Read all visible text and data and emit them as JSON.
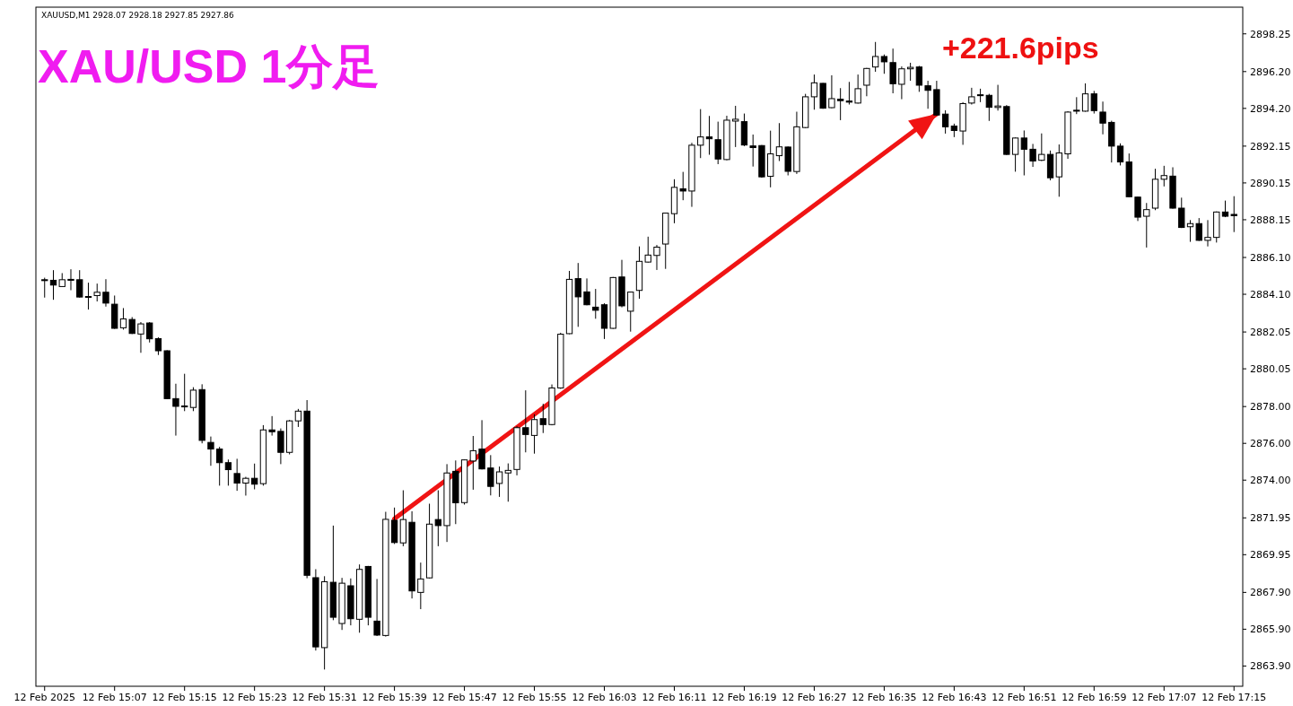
{
  "chart_data": {
    "type": "candlestick",
    "title": "XAU/USD 1分足",
    "subtitle": "XAUUSD,M1  2928.07 2928.18 2927.85 2927.86",
    "color": "#000000",
    "xlim": [
      "2025-02-12T14:58",
      "2025-02-12T17:16"
    ],
    "ylim": [
      2862.8,
      2899.7
    ],
    "yticks": [
      2898.25,
      {
        "value": 2896.2,
        "label": "2896.20"
      },
      {
        "value": 2894.2,
        "label": "2894.20"
      },
      2892.15,
      2890.15,
      2888.15,
      {
        "value": 2886.1,
        "label": "2886.10"
      },
      {
        "value": 2884.1,
        "label": "2884.10"
      },
      2882.05,
      2880.05,
      {
        "value": 2878,
        "label": "2878.00"
      },
      {
        "value": 2876,
        "label": "2876.00"
      },
      {
        "value": 2874,
        "label": "2874.00"
      },
      2871.95,
      2869.95,
      {
        "value": 2867.9,
        "label": "2867.90"
      },
      {
        "value": 2865.9,
        "label": "2865.90"
      },
      {
        "value": 2863.9,
        "label": "2863.90"
      }
    ],
    "xticks": [
      {
        "value": "2025-02-12T14:59",
        "label": "12 Feb 2025"
      },
      {
        "value": "2025-02-12T15:07",
        "label": "12 Feb 15:07"
      },
      {
        "value": "2025-02-12T15:15",
        "label": "12 Feb 15:15"
      },
      {
        "value": "2025-02-12T15:23",
        "label": "12 Feb 15:23"
      },
      {
        "value": "2025-02-12T15:31",
        "label": "12 Feb 15:31"
      },
      {
        "value": "2025-02-12T15:39",
        "label": "12 Feb 15:39"
      },
      {
        "value": "2025-02-12T15:47",
        "label": "12 Feb 15:47"
      },
      {
        "value": "2025-02-12T15:55",
        "label": "12 Feb 15:55"
      },
      {
        "value": "2025-02-12T16:03",
        "label": "12 Feb 16:03"
      },
      {
        "value": "2025-02-12T16:11",
        "label": "12 Feb 16:11"
      },
      {
        "value": "2025-02-12T16:19",
        "label": "12 Feb 16:19"
      },
      {
        "value": "2025-02-12T16:27",
        "label": "12 Feb 16:27"
      },
      {
        "value": "2025-02-12T16:35",
        "label": "12 Feb 16:35"
      },
      {
        "value": "2025-02-12T16:43",
        "label": "12 Feb 16:43"
      },
      {
        "value": "2025-02-12T16:51",
        "label": "12 Feb 16:51"
      },
      {
        "value": "2025-02-12T16:59",
        "label": "12 Feb 16:59"
      },
      {
        "value": "2025-02-12T17:07",
        "label": "12 Feb 17:07"
      },
      {
        "value": "2025-02-12T17:15",
        "label": "12 Feb 17:15"
      }
    ],
    "x": [
      "2025-02-12T14:59",
      "2025-02-12T15:00",
      "2025-02-12T15:01",
      "2025-02-12T15:02",
      "2025-02-12T15:03",
      "2025-02-12T15:04",
      "2025-02-12T15:05",
      "2025-02-12T15:06",
      "2025-02-12T15:07",
      "2025-02-12T15:08",
      "2025-02-12T15:09",
      "2025-02-12T15:10",
      "2025-02-12T15:11",
      "2025-02-12T15:12",
      "2025-02-12T15:13",
      "2025-02-12T15:14",
      "2025-02-12T15:15",
      "2025-02-12T15:16",
      "2025-02-12T15:17",
      "2025-02-12T15:18",
      "2025-02-12T15:19",
      "2025-02-12T15:20",
      "2025-02-12T15:21",
      "2025-02-12T15:22",
      "2025-02-12T15:23",
      "2025-02-12T15:24",
      "2025-02-12T15:25",
      "2025-02-12T15:26",
      "2025-02-12T15:27",
      "2025-02-12T15:28",
      "2025-02-12T15:29",
      "2025-02-12T15:30",
      "2025-02-12T15:31",
      "2025-02-12T15:32",
      "2025-02-12T15:33",
      "2025-02-12T15:34",
      "2025-02-12T15:35",
      "2025-02-12T15:36",
      "2025-02-12T15:37",
      "2025-02-12T15:38",
      "2025-02-12T15:39",
      "2025-02-12T15:40",
      "2025-02-12T15:41",
      "2025-02-12T15:42",
      "2025-02-12T15:43",
      "2025-02-12T15:44",
      "2025-02-12T15:45",
      "2025-02-12T15:46",
      "2025-02-12T15:47",
      "2025-02-12T15:48",
      "2025-02-12T15:49",
      "2025-02-12T15:50",
      "2025-02-12T15:51",
      "2025-02-12T15:52",
      "2025-02-12T15:53",
      "2025-02-12T15:54",
      "2025-02-12T15:55",
      "2025-02-12T15:56",
      "2025-02-12T15:57",
      "2025-02-12T15:58",
      "2025-02-12T15:59",
      "2025-02-12T16:00",
      "2025-02-12T16:01",
      "2025-02-12T16:02",
      "2025-02-12T16:03",
      "2025-02-12T16:04",
      "2025-02-12T16:05",
      "2025-02-12T16:06",
      "2025-02-12T16:07",
      "2025-02-12T16:08",
      "2025-02-12T16:09",
      "2025-02-12T16:10",
      "2025-02-12T16:11",
      "2025-02-12T16:12",
      "2025-02-12T16:13",
      "2025-02-12T16:14",
      "2025-02-12T16:15",
      "2025-02-12T16:16",
      "2025-02-12T16:17",
      "2025-02-12T16:18",
      "2025-02-12T16:19",
      "2025-02-12T16:20",
      "2025-02-12T16:21",
      "2025-02-12T16:22",
      "2025-02-12T16:23",
      "2025-02-12T16:24",
      "2025-02-12T16:25",
      "2025-02-12T16:26",
      "2025-02-12T16:27",
      "2025-02-12T16:28",
      "2025-02-12T16:29",
      "2025-02-12T16:30",
      "2025-02-12T16:31",
      "2025-02-12T16:32",
      "2025-02-12T16:33",
      "2025-02-12T16:34",
      "2025-02-12T16:35",
      "2025-02-12T16:36",
      "2025-02-12T16:37",
      "2025-02-12T16:38",
      "2025-02-12T16:39",
      "2025-02-12T16:40",
      "2025-02-12T16:41",
      "2025-02-12T16:42",
      "2025-02-12T16:43",
      "2025-02-12T16:44",
      "2025-02-12T16:45",
      "2025-02-12T16:46",
      "2025-02-12T16:47",
      "2025-02-12T16:48",
      "2025-02-12T16:49",
      "2025-02-12T16:50",
      "2025-02-12T16:51",
      "2025-02-12T16:52",
      "2025-02-12T16:53",
      "2025-02-12T16:54",
      "2025-02-12T16:55",
      "2025-02-12T16:56",
      "2025-02-12T16:57",
      "2025-02-12T16:58",
      "2025-02-12T16:59",
      "2025-02-12T17:00",
      "2025-02-12T17:01",
      "2025-02-12T17:02",
      "2025-02-12T17:03",
      "2025-02-12T17:04",
      "2025-02-12T17:05",
      "2025-02-12T17:06",
      "2025-02-12T17:07",
      "2025-02-12T17:08",
      "2025-02-12T17:09",
      "2025-02-12T17:10",
      "2025-02-12T17:11",
      "2025-02-12T17:12",
      "2025-02-12T17:13",
      "2025-02-12T17:14",
      "2025-02-12T17:15"
    ],
    "ohlc": [
      [
        2884.89,
        2885.0,
        2883.92,
        2884.86
      ],
      [
        2884.86,
        2885.41,
        2883.8,
        2884.6
      ],
      [
        2884.52,
        2885.25,
        2884.5,
        2884.89
      ],
      [
        2884.91,
        2885.46,
        2884.32,
        2884.86
      ],
      [
        2884.89,
        2885.41,
        2883.92,
        2883.95
      ],
      [
        2883.98,
        2884.73,
        2883.27,
        2883.96
      ],
      [
        2884.03,
        2884.68,
        2883.71,
        2884.21
      ],
      [
        2884.21,
        2884.92,
        2883.43,
        2883.62
      ],
      [
        2883.56,
        2884.03,
        2882.22,
        2882.25
      ],
      [
        2882.28,
        2883.35,
        2882.18,
        2882.76
      ],
      [
        2882.73,
        2882.86,
        2881.94,
        2881.97
      ],
      [
        2881.94,
        2882.59,
        2880.92,
        2882.49
      ],
      [
        2882.54,
        2882.59,
        2881.48,
        2881.68
      ],
      [
        2881.69,
        2881.76,
        2880.8,
        2881.03
      ],
      [
        2881.03,
        2881.06,
        2878.4,
        2878.43
      ],
      [
        2878.43,
        2879.24,
        2876.42,
        2878.01
      ],
      [
        2878.03,
        2879.78,
        2877.75,
        2878.0
      ],
      [
        2877.95,
        2879.05,
        2877.75,
        2878.89
      ],
      [
        2878.92,
        2879.21,
        2876.0,
        2876.16
      ],
      [
        2876.05,
        2876.37,
        2874.78,
        2875.69
      ],
      [
        2875.69,
        2875.81,
        2873.7,
        2874.95
      ],
      [
        2874.95,
        2875.12,
        2873.7,
        2874.57
      ],
      [
        2874.36,
        2875.16,
        2873.42,
        2873.84
      ],
      [
        2873.84,
        2874.18,
        2873.16,
        2874.1
      ],
      [
        2874.1,
        2874.9,
        2873.5,
        2873.78
      ],
      [
        2873.81,
        2876.99,
        2873.7,
        2876.73
      ],
      [
        2876.73,
        2877.48,
        2876.42,
        2876.63
      ],
      [
        2876.65,
        2876.81,
        2874.87,
        2875.51
      ],
      [
        2875.51,
        2877.27,
        2875.4,
        2877.22
      ],
      [
        2877.22,
        2877.87,
        2876.89,
        2877.75
      ],
      [
        2877.75,
        2878.35,
        2868.67,
        2868.83
      ],
      [
        2868.7,
        2869.16,
        2864.74,
        2864.94
      ],
      [
        2864.9,
        2868.78,
        2863.71,
        2868.48
      ],
      [
        2868.45,
        2871.53,
        2866.39,
        2866.55
      ],
      [
        2866.21,
        2868.69,
        2865.86,
        2868.4
      ],
      [
        2868.26,
        2868.66,
        2866.11,
        2866.47
      ],
      [
        2866.44,
        2869.42,
        2865.71,
        2869.15
      ],
      [
        2869.31,
        2869.34,
        2866.11,
        2866.55
      ],
      [
        2866.34,
        2868.63,
        2865.53,
        2865.58
      ],
      [
        2865.56,
        2872.28,
        2865.5,
        2871.87
      ],
      [
        2871.82,
        2872.51,
        2870.53,
        2870.61
      ],
      [
        2870.59,
        2873.45,
        2870.41,
        2871.86
      ],
      [
        2871.71,
        2872.31,
        2867.57,
        2867.98
      ],
      [
        2867.9,
        2869.52,
        2866.99,
        2868.63
      ],
      [
        2868.69,
        2872.72,
        2868.66,
        2871.61
      ],
      [
        2871.86,
        2873.45,
        2870.41,
        2871.53
      ],
      [
        2871.53,
        2874.87,
        2870.64,
        2874.39
      ],
      [
        2874.48,
        2875.07,
        2871.61,
        2872.77
      ],
      [
        2872.78,
        2875.12,
        2872.67,
        2875.1
      ],
      [
        2875.04,
        2876.4,
        2873.48,
        2875.6
      ],
      [
        2875.69,
        2877.26,
        2874.58,
        2874.61
      ],
      [
        2874.66,
        2875.36,
        2873.17,
        2873.66
      ],
      [
        2873.82,
        2874.74,
        2873.09,
        2874.45
      ],
      [
        2874.39,
        2874.91,
        2872.83,
        2874.53
      ],
      [
        2874.58,
        2876.93,
        2874.26,
        2876.85
      ],
      [
        2876.85,
        2878.88,
        2875.51,
        2876.48
      ],
      [
        2876.43,
        2877.58,
        2875.44,
        2877.29
      ],
      [
        2877.34,
        2878.15,
        2876.56,
        2877.02
      ],
      [
        2877.02,
        2879.2,
        2876.98,
        2879.01
      ],
      [
        2879.01,
        2882.01,
        2878.96,
        2881.93
      ],
      [
        2881.96,
        2885.37,
        2881.93,
        2884.91
      ],
      [
        2884.95,
        2885.8,
        2882.33,
        2883.96
      ],
      [
        2884.23,
        2884.96,
        2883.5,
        2883.53
      ],
      [
        2883.4,
        2884.39,
        2882.77,
        2883.23
      ],
      [
        2883.53,
        2883.61,
        2881.67,
        2882.25
      ],
      [
        2882.25,
        2885.04,
        2882.22,
        2885.01
      ],
      [
        2885.04,
        2885.97,
        2883.39,
        2883.47
      ],
      [
        2883.18,
        2884.24,
        2882.07,
        2884.22
      ],
      [
        2884.31,
        2886.7,
        2883.86,
        2885.89
      ],
      [
        2885.85,
        2887.23,
        2885.82,
        2886.23
      ],
      [
        2886.21,
        2886.78,
        2885.42,
        2886.66
      ],
      [
        2886.83,
        2888.53,
        2885.48,
        2888.51
      ],
      [
        2888.48,
        2890.35,
        2887.96,
        2889.91
      ],
      [
        2889.83,
        2890.75,
        2889.21,
        2889.71
      ],
      [
        2889.71,
        2892.33,
        2888.85,
        2892.2
      ],
      [
        2892.2,
        2894.16,
        2891.5,
        2892.65
      ],
      [
        2892.65,
        2893.79,
        2891.68,
        2892.55
      ],
      [
        2892.5,
        2893.48,
        2891.17,
        2891.45
      ],
      [
        2891.42,
        2893.8,
        2891.38,
        2893.56
      ],
      [
        2893.51,
        2894.34,
        2892.1,
        2893.61
      ],
      [
        2893.48,
        2893.92,
        2892.15,
        2892.21
      ],
      [
        2892.16,
        2892.78,
        2891.04,
        2892.07
      ],
      [
        2892.18,
        2892.21,
        2890.43,
        2890.48
      ],
      [
        2890.51,
        2892.99,
        2889.91,
        2891.73
      ],
      [
        2891.63,
        2893.4,
        2891.34,
        2892.11
      ],
      [
        2892.1,
        2892.13,
        2890.56,
        2890.78
      ],
      [
        2890.77,
        2894.02,
        2890.64,
        2893.2
      ],
      [
        2893.16,
        2894.99,
        2893.13,
        2894.83
      ],
      [
        2894.83,
        2896.04,
        2894.13,
        2895.59
      ],
      [
        2895.56,
        2895.58,
        2894.18,
        2894.21
      ],
      [
        2894.24,
        2896.0,
        2894.21,
        2894.73
      ],
      [
        2894.7,
        2895.3,
        2893.56,
        2894.62
      ],
      [
        2894.6,
        2895.64,
        2894.41,
        2894.54
      ],
      [
        2894.49,
        2896.04,
        2894.46,
        2895.27
      ],
      [
        2895.46,
        2896.4,
        2894.86,
        2896.37
      ],
      [
        2896.45,
        2897.81,
        2896.19,
        2897.02
      ],
      [
        2897.02,
        2897.13,
        2896.08,
        2896.73
      ],
      [
        2896.69,
        2897.45,
        2895.02,
        2895.54
      ],
      [
        2895.51,
        2896.48,
        2894.7,
        2896.35
      ],
      [
        2896.35,
        2896.68,
        2895.7,
        2896.43
      ],
      [
        2896.45,
        2896.51,
        2895.1,
        2895.46
      ],
      [
        2895.43,
        2895.7,
        2894.18,
        2895.18
      ],
      [
        2895.22,
        2895.7,
        2893.8,
        2893.84
      ],
      [
        2893.89,
        2894.1,
        2892.83,
        2893.2
      ],
      [
        2893.24,
        2893.37,
        2892.64,
        2893.0
      ],
      [
        2892.97,
        2894.54,
        2892.22,
        2894.46
      ],
      [
        2894.49,
        2895.32,
        2894.41,
        2894.83
      ],
      [
        2894.94,
        2895.27,
        2894.54,
        2894.9
      ],
      [
        2894.91,
        2894.99,
        2893.52,
        2894.26
      ],
      [
        2894.25,
        2895.48,
        2894.08,
        2894.33
      ],
      [
        2894.3,
        2894.38,
        2891.67,
        2891.7
      ],
      [
        2891.7,
        2892.62,
        2890.76,
        2892.59
      ],
      [
        2892.59,
        2893.0,
        2890.56,
        2891.98
      ],
      [
        2891.98,
        2892.27,
        2891.02,
        2891.34
      ],
      [
        2891.38,
        2892.84,
        2891.34,
        2891.7
      ],
      [
        2891.7,
        2891.91,
        2890.29,
        2890.43
      ],
      [
        2890.48,
        2892.24,
        2889.4,
        2891.78
      ],
      [
        2891.73,
        2894.05,
        2891.46,
        2894.0
      ],
      [
        2894.1,
        2894.81,
        2893.89,
        2894.05
      ],
      [
        2894.05,
        2895.56,
        2894.02,
        2894.99
      ],
      [
        2894.99,
        2895.15,
        2893.92,
        2894.08
      ],
      [
        2894.0,
        2894.57,
        2892.79,
        2893.4
      ],
      [
        2893.44,
        2893.53,
        2891.26,
        2892.15
      ],
      [
        2892.15,
        2892.3,
        2891.1,
        2891.29
      ],
      [
        2891.29,
        2891.75,
        2889.37,
        2889.4
      ],
      [
        2889.38,
        2889.4,
        2888.08,
        2888.29
      ],
      [
        2888.34,
        2889.06,
        2886.64,
        2888.7
      ],
      [
        2888.78,
        2890.92,
        2888.67,
        2890.35
      ],
      [
        2890.35,
        2891.08,
        2889.96,
        2890.55
      ],
      [
        2890.52,
        2891.0,
        2888.75,
        2888.78
      ],
      [
        2888.78,
        2889.35,
        2887.7,
        2887.73
      ],
      [
        2887.77,
        2888.13,
        2886.95,
        2887.94
      ],
      [
        2887.94,
        2888.24,
        2887.0,
        2887.03
      ],
      [
        2887.03,
        2888.13,
        2886.7,
        2887.19
      ],
      [
        2887.19,
        2888.6,
        2886.91,
        2888.57
      ],
      [
        2888.57,
        2889.19,
        2888.29,
        2888.34
      ],
      [
        2888.44,
        2889.43,
        2887.48,
        2888.37
      ]
    ],
    "series": [
      {
        "type": "line",
        "color": "#f01414",
        "x": [
          "2025-02-12T15:39",
          "2025-02-12T16:41"
        ],
        "values": [
          2871.9,
          2893.9
        ]
      }
    ],
    "annotations": [
      {
        "text": "+221.6pips",
        "x": "2025-02-12T16:41",
        "y": 2893.9
      }
    ]
  }
}
